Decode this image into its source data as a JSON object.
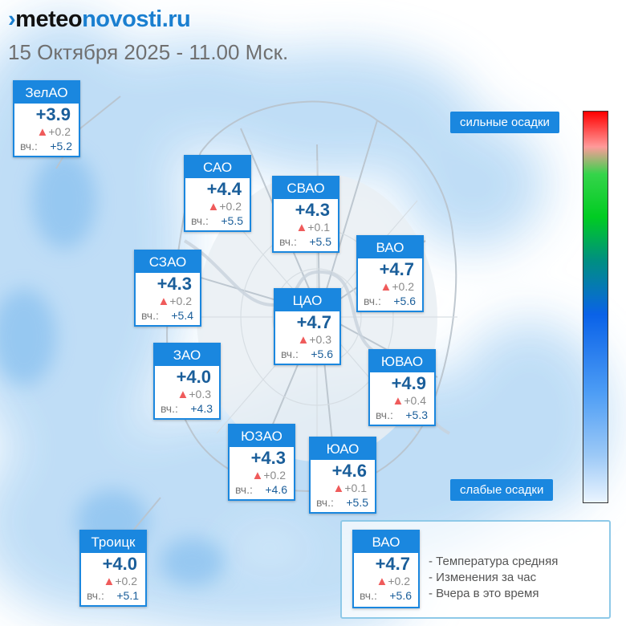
{
  "header": {
    "logo_mark": "›",
    "logo_meteo": "meteo",
    "logo_novosti": "novosti.ru",
    "date": "15 Октября 2025 - 11.00 Мск."
  },
  "districts": [
    {
      "name": "ЗелАО",
      "temp": "+3.9",
      "change": "+0.2",
      "yesterday_label": "вч.:",
      "yesterday": "+5.2"
    },
    {
      "name": "САО",
      "temp": "+4.4",
      "change": "+0.2",
      "yesterday_label": "вч.:",
      "yesterday": "+5.5"
    },
    {
      "name": "СВАО",
      "temp": "+4.3",
      "change": "+0.1",
      "yesterday_label": "вч.:",
      "yesterday": "+5.5"
    },
    {
      "name": "ВАО",
      "temp": "+4.7",
      "change": "+0.2",
      "yesterday_label": "вч.:",
      "yesterday": "+5.6"
    },
    {
      "name": "СЗАО",
      "temp": "+4.3",
      "change": "+0.2",
      "yesterday_label": "вч.:",
      "yesterday": "+5.4"
    },
    {
      "name": "ЦАО",
      "temp": "+4.7",
      "change": "+0.3",
      "yesterday_label": "вч.:",
      "yesterday": "+5.6"
    },
    {
      "name": "ЗАО",
      "temp": "+4.0",
      "change": "+0.3",
      "yesterday_label": "вч.:",
      "yesterday": "+4.3"
    },
    {
      "name": "ЮВАО",
      "temp": "+4.9",
      "change": "+0.4",
      "yesterday_label": "вч.:",
      "yesterday": "+5.3"
    },
    {
      "name": "ЮЗАО",
      "temp": "+4.3",
      "change": "+0.2",
      "yesterday_label": "вч.:",
      "yesterday": "+4.6"
    },
    {
      "name": "ЮАО",
      "temp": "+4.6",
      "change": "+0.1",
      "yesterday_label": "вч.:",
      "yesterday": "+5.5"
    },
    {
      "name": "Троицк",
      "temp": "+4.0",
      "change": "+0.2",
      "yesterday_label": "вч.:",
      "yesterday": "+5.1"
    }
  ],
  "scale": {
    "top_label": "сильные осадки",
    "bottom_label": "слабые осадки"
  },
  "legend": {
    "sample": {
      "name": "ВАО",
      "temp": "+4.7",
      "change": "+0.2",
      "yesterday_label": "вч.:",
      "yesterday": "+5.6"
    },
    "lines": [
      "- Температура средняя",
      "- Изменения за час",
      "- Вчера в это время"
    ]
  },
  "colors": {
    "accent": "#1a87df",
    "temperature_text": "#1a5e9a",
    "change_up": "#ef5b5b"
  },
  "icons": {
    "change_up": "triangle-up-icon"
  }
}
